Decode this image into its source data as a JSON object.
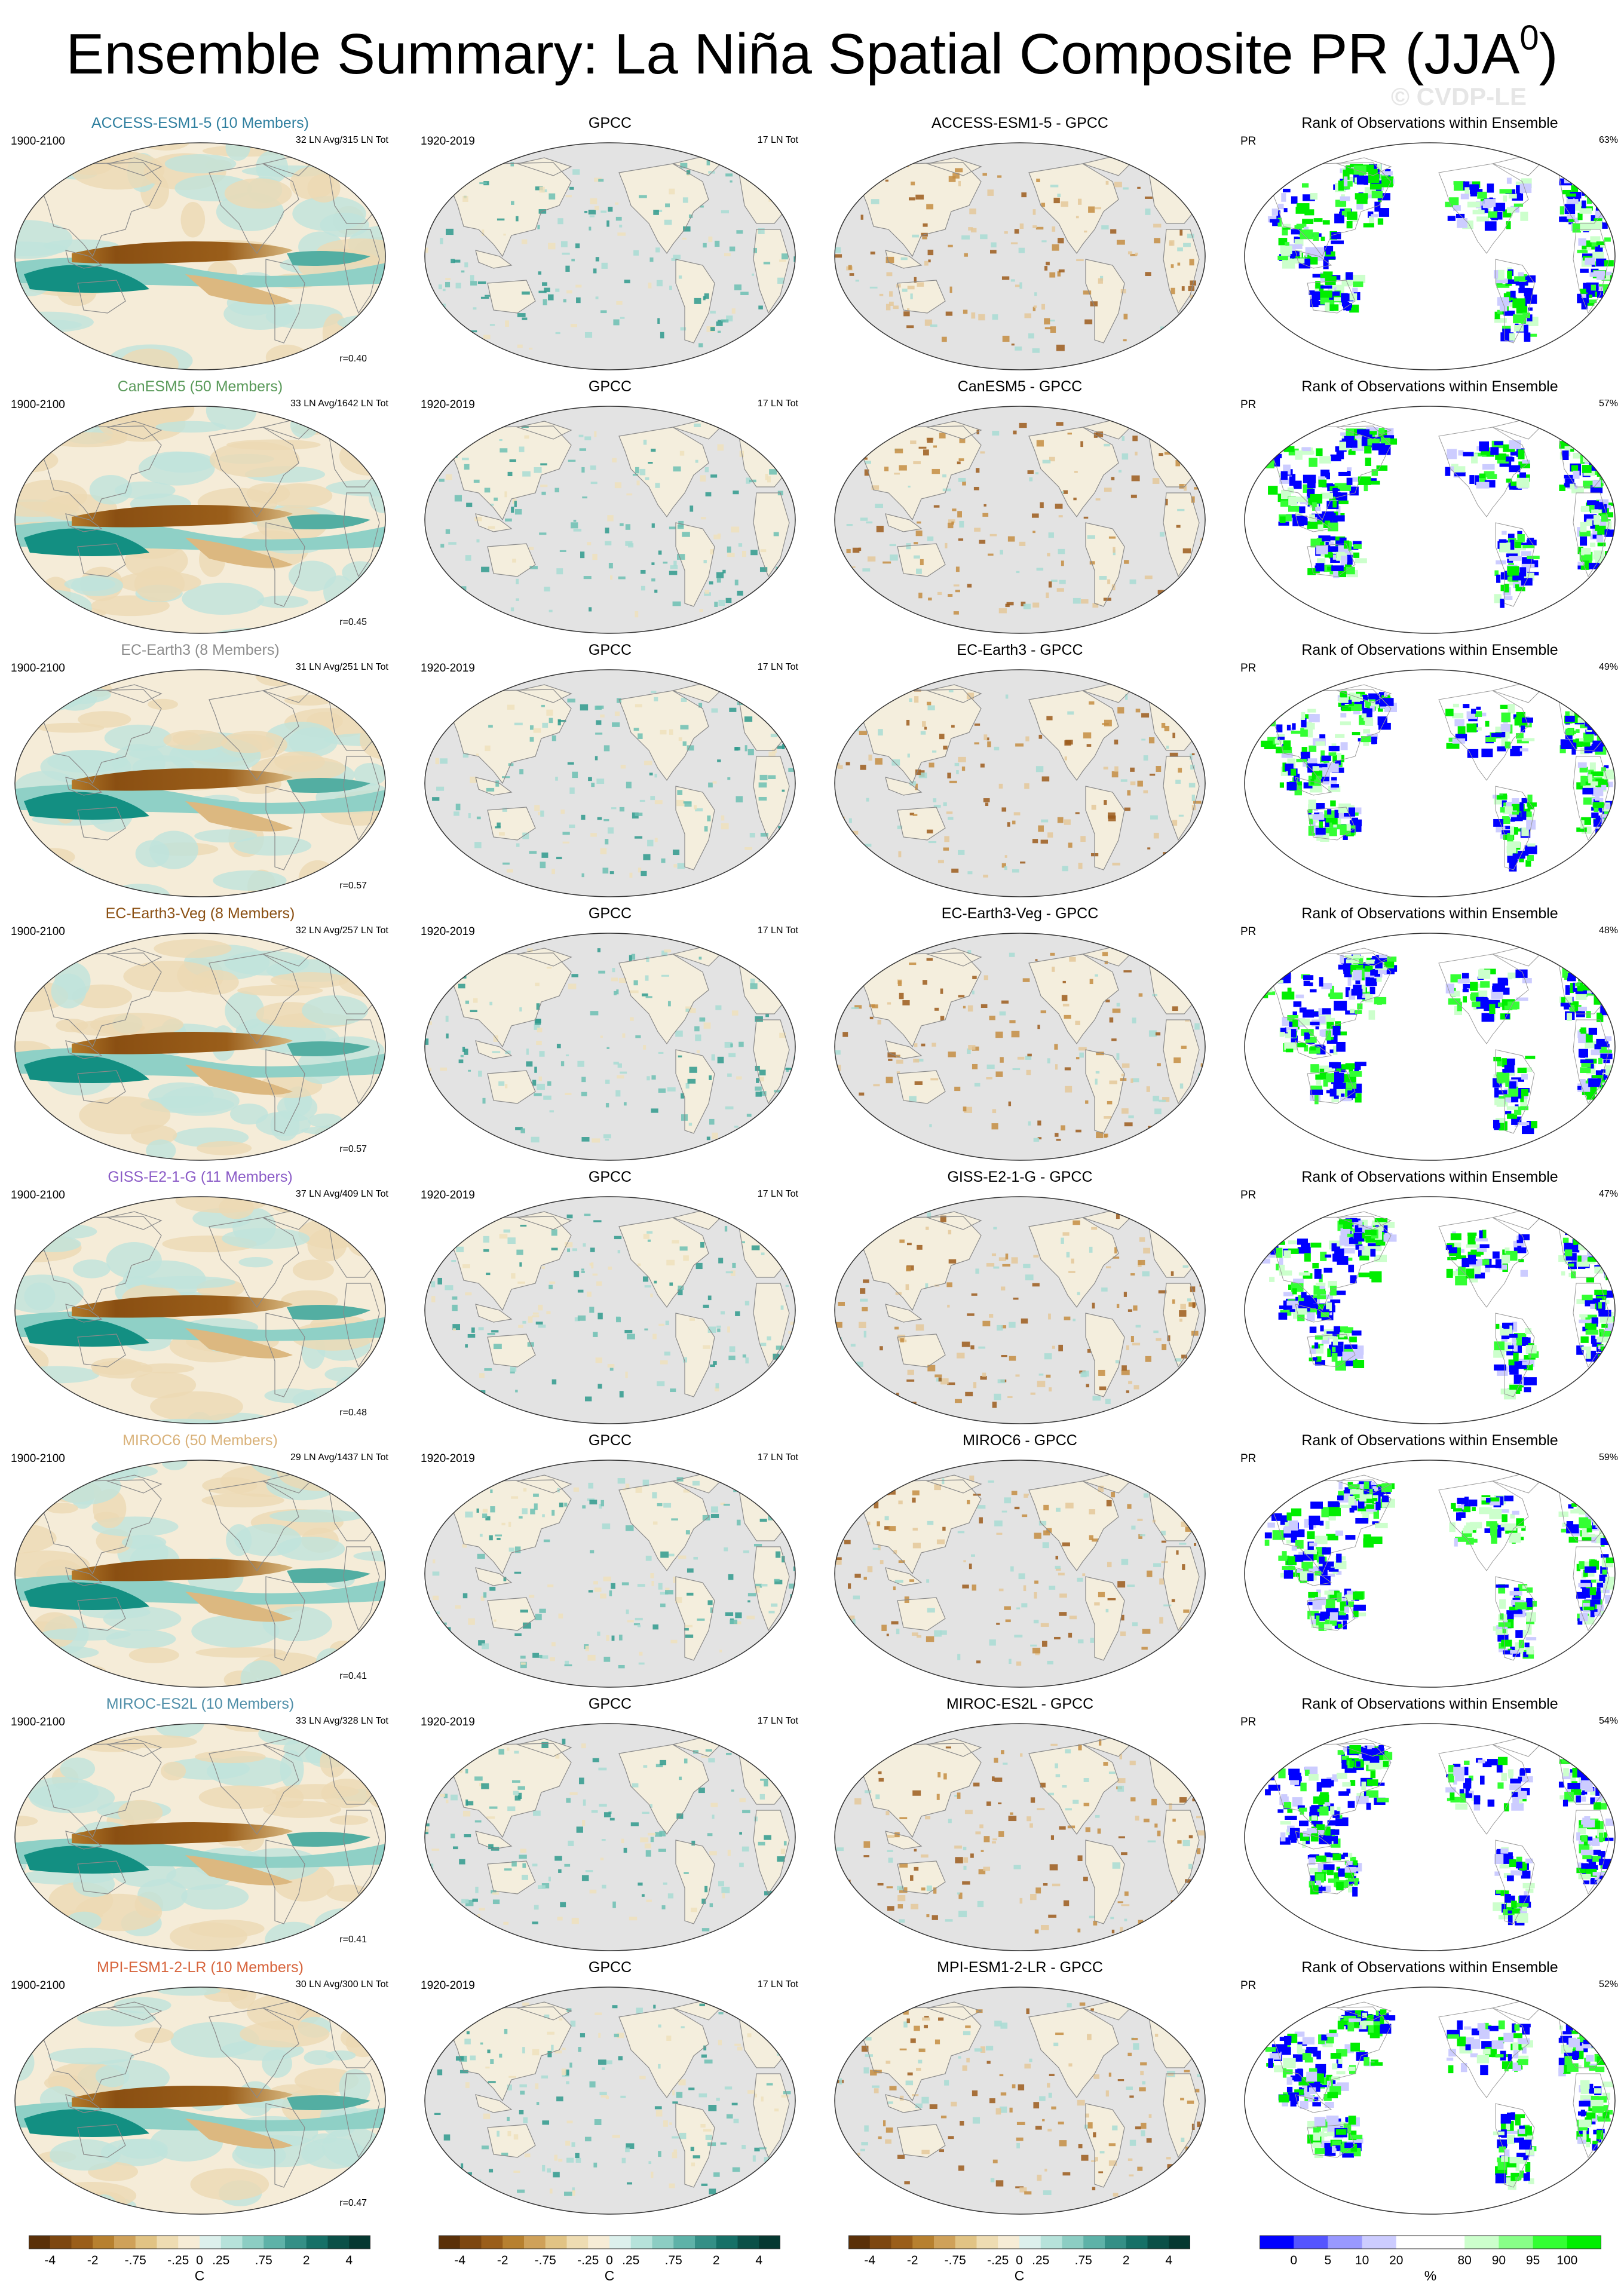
{
  "title": {
    "text": "Ensemble Summary: La Niña Spatial Composite PR (JJA",
    "sup": "0",
    "close": ")"
  },
  "watermark": "© CVDP-LE",
  "rows": [
    {
      "model_title": "ACCESS-ESM1-5 (10 Members)",
      "color": "#2f7f9f",
      "years": "1900-2100",
      "counts": "32 LN Avg/315 LN Tot",
      "r": "r=0.40",
      "diff_title": "ACCESS-ESM1-5 - GPCC",
      "rank_pct": "63%"
    },
    {
      "model_title": "CanESM5 (50 Members)",
      "color": "#5a9a5a",
      "years": "1900-2100",
      "counts": "33 LN Avg/1642 LN Tot",
      "r": "r=0.45",
      "diff_title": "CanESM5 - GPCC",
      "rank_pct": "57%"
    },
    {
      "model_title": "EC-Earth3 (8 Members)",
      "color": "#8e8e8e",
      "years": "1900-2100",
      "counts": "31 LN Avg/251 LN Tot",
      "r": "r=0.57",
      "diff_title": "EC-Earth3 - GPCC",
      "rank_pct": "49%"
    },
    {
      "model_title": "EC-Earth3-Veg (8 Members)",
      "color": "#8a4f12",
      "years": "1900-2100",
      "counts": "32 LN Avg/257 LN Tot",
      "r": "r=0.57",
      "diff_title": "EC-Earth3-Veg - GPCC",
      "rank_pct": "48%"
    },
    {
      "model_title": "GISS-E2-1-G (11 Members)",
      "color": "#8b5cc7",
      "years": "1900-2100",
      "counts": "37 LN Avg/409 LN Tot",
      "r": "r=0.48",
      "diff_title": "GISS-E2-1-G - GPCC",
      "rank_pct": "47%"
    },
    {
      "model_title": "MIROC6 (50 Members)",
      "color": "#d9b27a",
      "years": "1900-2100",
      "counts": "29 LN Avg/1437 LN Tot",
      "r": "r=0.41",
      "diff_title": "MIROC6 - GPCC",
      "rank_pct": "59%"
    },
    {
      "model_title": "MIROC-ES2L (10 Members)",
      "color": "#4f8ea8",
      "years": "1900-2100",
      "counts": "33 LN Avg/328 LN Tot",
      "r": "r=0.41",
      "diff_title": "MIROC-ES2L - GPCC",
      "rank_pct": "54%"
    },
    {
      "model_title": "MPI-ESM1-2-LR (10 Members)",
      "color": "#d7643c",
      "years": "1900-2100",
      "counts": "30 LN Avg/300 LN Tot",
      "r": "r=0.47",
      "diff_title": "MPI-ESM1-2-LR - GPCC",
      "rank_pct": "52%"
    }
  ],
  "obs": {
    "title": "GPCC",
    "years": "1920-2019",
    "counts": "17 LN Tot"
  },
  "rank": {
    "title": "Rank of Observations within Ensemble",
    "var": "PR"
  },
  "colorbars": {
    "diverging": {
      "colors": [
        "#5a3008",
        "#7d4710",
        "#9a5e1a",
        "#b7802f",
        "#cfa159",
        "#e1c384",
        "#eedcb2",
        "#f6ecd6",
        "#dcf0ec",
        "#b6e2da",
        "#8ccdc3",
        "#5eb2a8",
        "#348f86",
        "#167067",
        "#0b5048",
        "#053831"
      ],
      "ticks": [
        "-4",
        "-2",
        "-.75",
        "-.25",
        "0",
        ".25",
        ".75",
        "2",
        "4"
      ],
      "unit": "C"
    },
    "rank": {
      "colors": [
        "#0000ff",
        "#5555ff",
        "#9999ff",
        "#ccccff",
        "#ffffff",
        "#ffffff",
        "#ccffcc",
        "#88ff88",
        "#33ff33",
        "#00ee00"
      ],
      "ticks": [
        "0",
        "5",
        "10",
        "20",
        "80",
        "90",
        "95",
        "100"
      ],
      "unit": "%"
    }
  }
}
